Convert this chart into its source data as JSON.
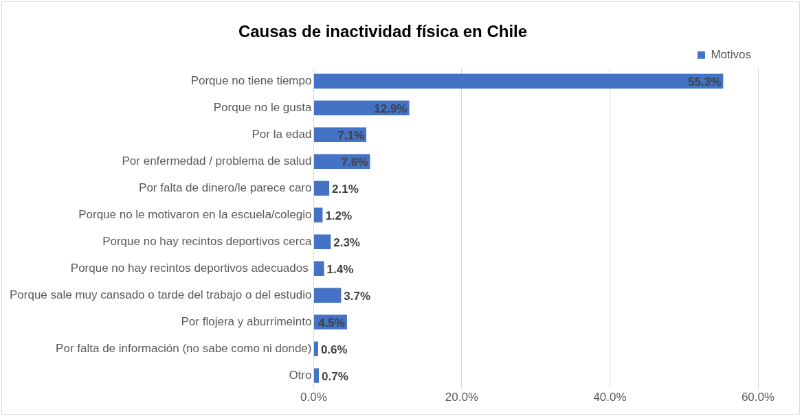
{
  "chart_data": {
    "type": "bar",
    "orientation": "horizontal",
    "title": "Causas de inactividad física en Chile",
    "categories": [
      "Porque no tiene tiempo",
      "Porque no le gusta",
      "Por la edad",
      "Por enfermedad / problema de salud",
      "Por falta de dinero/le parece caro",
      "Porque no le motivaron en la escuela/colegio",
      "Porque no hay recintos deportivos cerca",
      "Porque no hay recintos deportivos adecuados ",
      "Porque sale muy cansado o tarde del trabajo o del estudio",
      "Por flojera y aburrimeinto",
      "Por falta de información (no sabe como ni donde)",
      "Otro"
    ],
    "series": [
      {
        "name": "Motivos",
        "color": "#4472c4",
        "values": [
          55.3,
          12.9,
          7.1,
          7.6,
          2.1,
          1.2,
          2.3,
          1.4,
          3.7,
          4.5,
          0.6,
          0.7
        ],
        "value_labels": [
          "55.3%",
          "12.9%",
          "7.1%",
          "7.6%",
          "2.1%",
          "1.2%",
          "2.3%",
          "1.4%",
          "3.7%",
          "4.5%",
          "0.6%",
          "0.7%"
        ]
      }
    ],
    "xlim": [
      0,
      60
    ],
    "xticks": [
      {
        "value": 0,
        "label": "0.0%"
      },
      {
        "value": 20,
        "label": "20.0%"
      },
      {
        "value": 40,
        "label": "40.0%"
      },
      {
        "value": 60,
        "label": "60.0%"
      }
    ],
    "grid": "x",
    "legend": "top right"
  }
}
